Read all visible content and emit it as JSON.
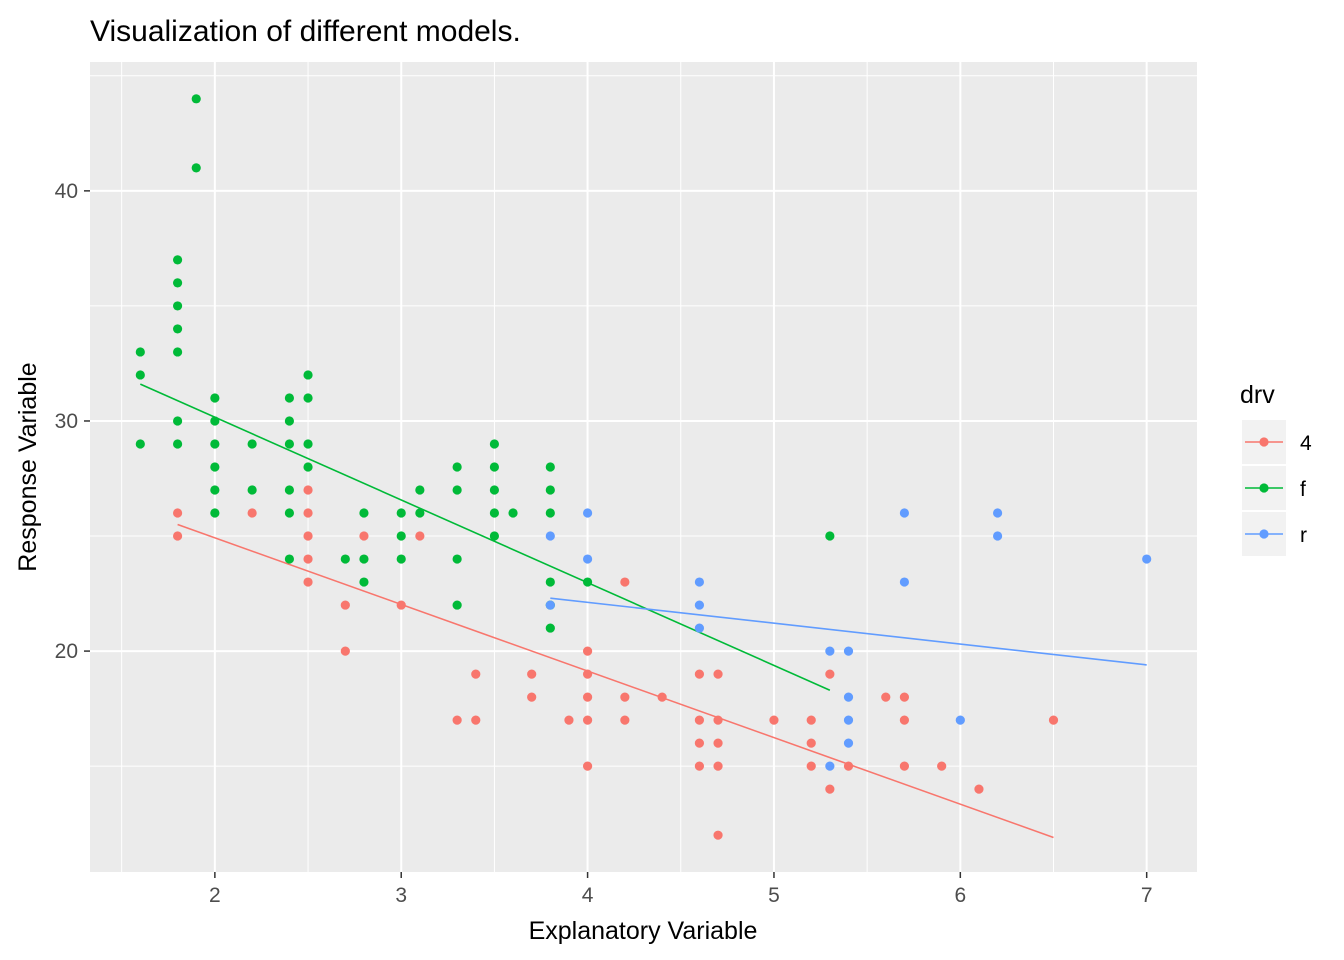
{
  "chart_data": {
    "type": "scatter",
    "title": "Visualization of different models.",
    "xlabel": "Explanatory Variable",
    "ylabel": "Response Variable",
    "xlim": [
      1.33,
      7.27
    ],
    "ylim": [
      10.4,
      45.6
    ],
    "x_ticks": [
      2,
      3,
      4,
      5,
      6,
      7
    ],
    "x_tick_labels": [
      "2",
      "3",
      "4",
      "5",
      "6",
      "7"
    ],
    "y_ticks": [
      20,
      30,
      40
    ],
    "y_tick_labels": [
      "20",
      "30",
      "40"
    ],
    "x_minor_ticks": [
      1.5,
      2.5,
      3.5,
      4.5,
      5.5,
      6.5
    ],
    "y_minor_ticks": [
      15,
      25,
      35,
      45
    ],
    "grid": true,
    "legend": {
      "title": "drv",
      "position": "right"
    },
    "series": [
      {
        "name": "4",
        "color": "#F8766D",
        "points": [
          [
            1.8,
            26
          ],
          [
            1.8,
            25
          ],
          [
            2.2,
            26
          ],
          [
            2.5,
            27
          ],
          [
            2.5,
            26
          ],
          [
            2.5,
            25
          ],
          [
            2.5,
            24
          ],
          [
            2.5,
            23
          ],
          [
            2.7,
            22
          ],
          [
            2.7,
            20
          ],
          [
            2.8,
            25
          ],
          [
            3.0,
            22
          ],
          [
            3.1,
            25
          ],
          [
            3.3,
            17
          ],
          [
            3.4,
            19
          ],
          [
            3.4,
            17
          ],
          [
            3.7,
            19
          ],
          [
            3.7,
            18
          ],
          [
            3.9,
            17
          ],
          [
            4.0,
            20
          ],
          [
            4.0,
            19
          ],
          [
            4.0,
            18
          ],
          [
            4.0,
            17
          ],
          [
            4.0,
            15
          ],
          [
            4.2,
            23
          ],
          [
            4.2,
            18
          ],
          [
            4.2,
            17
          ],
          [
            4.4,
            18
          ],
          [
            4.6,
            19
          ],
          [
            4.6,
            17
          ],
          [
            4.6,
            16
          ],
          [
            4.6,
            15
          ],
          [
            4.7,
            19
          ],
          [
            4.7,
            17
          ],
          [
            4.7,
            16
          ],
          [
            4.7,
            15
          ],
          [
            4.7,
            12
          ],
          [
            5.0,
            17
          ],
          [
            5.2,
            17
          ],
          [
            5.2,
            16
          ],
          [
            5.2,
            15
          ],
          [
            5.3,
            19
          ],
          [
            5.3,
            14
          ],
          [
            5.4,
            15
          ],
          [
            5.6,
            18
          ],
          [
            5.7,
            18
          ],
          [
            5.7,
            17
          ],
          [
            5.7,
            15
          ],
          [
            5.9,
            15
          ],
          [
            6.1,
            14
          ],
          [
            6.5,
            17
          ]
        ],
        "fit": [
          [
            1.8,
            25.5
          ],
          [
            6.5,
            11.9
          ]
        ]
      },
      {
        "name": "f",
        "color": "#00BA38",
        "points": [
          [
            1.6,
            33
          ],
          [
            1.6,
            32
          ],
          [
            1.6,
            29
          ],
          [
            1.8,
            37
          ],
          [
            1.8,
            36
          ],
          [
            1.8,
            35
          ],
          [
            1.8,
            34
          ],
          [
            1.8,
            33
          ],
          [
            1.8,
            30
          ],
          [
            1.8,
            29
          ],
          [
            1.9,
            44
          ],
          [
            1.9,
            41
          ],
          [
            2.0,
            31
          ],
          [
            2.0,
            30
          ],
          [
            2.0,
            29
          ],
          [
            2.0,
            28
          ],
          [
            2.0,
            27
          ],
          [
            2.0,
            26
          ],
          [
            2.2,
            29
          ],
          [
            2.2,
            27
          ],
          [
            2.4,
            31
          ],
          [
            2.4,
            30
          ],
          [
            2.4,
            29
          ],
          [
            2.4,
            27
          ],
          [
            2.4,
            26
          ],
          [
            2.4,
            24
          ],
          [
            2.5,
            32
          ],
          [
            2.5,
            31
          ],
          [
            2.5,
            29
          ],
          [
            2.5,
            28
          ],
          [
            2.7,
            24
          ],
          [
            2.8,
            26
          ],
          [
            2.8,
            24
          ],
          [
            2.8,
            23
          ],
          [
            3.0,
            26
          ],
          [
            3.0,
            25
          ],
          [
            3.0,
            24
          ],
          [
            3.1,
            27
          ],
          [
            3.1,
            26
          ],
          [
            3.3,
            28
          ],
          [
            3.3,
            27
          ],
          [
            3.3,
            24
          ],
          [
            3.3,
            22
          ],
          [
            3.5,
            29
          ],
          [
            3.5,
            28
          ],
          [
            3.5,
            27
          ],
          [
            3.5,
            26
          ],
          [
            3.5,
            25
          ],
          [
            3.6,
            26
          ],
          [
            3.8,
            28
          ],
          [
            3.8,
            27
          ],
          [
            3.8,
            26
          ],
          [
            3.8,
            23
          ],
          [
            3.8,
            22
          ],
          [
            3.8,
            21
          ],
          [
            4.0,
            23
          ],
          [
            5.3,
            25
          ]
        ],
        "fit": [
          [
            1.6,
            31.6
          ],
          [
            5.3,
            18.3
          ]
        ]
      },
      {
        "name": "r",
        "color": "#619CFF",
        "points": [
          [
            3.8,
            25
          ],
          [
            3.8,
            22
          ],
          [
            4.0,
            26
          ],
          [
            4.0,
            24
          ],
          [
            4.6,
            23
          ],
          [
            4.6,
            22
          ],
          [
            4.6,
            21
          ],
          [
            5.3,
            20
          ],
          [
            5.3,
            15
          ],
          [
            5.4,
            20
          ],
          [
            5.4,
            18
          ],
          [
            5.4,
            17
          ],
          [
            5.4,
            16
          ],
          [
            5.7,
            26
          ],
          [
            5.7,
            23
          ],
          [
            6.0,
            17
          ],
          [
            6.2,
            26
          ],
          [
            6.2,
            25
          ],
          [
            7.0,
            24
          ]
        ],
        "fit": [
          [
            3.8,
            22.3
          ],
          [
            7.0,
            19.4
          ]
        ]
      }
    ]
  }
}
